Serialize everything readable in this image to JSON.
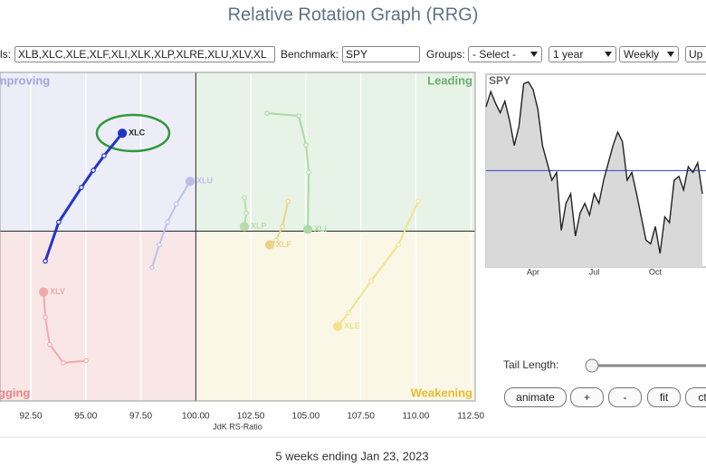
{
  "title": "Relative Rotation Graph (RRG)",
  "controls": {
    "symbols_label": "ls:",
    "symbols": "XLB,XLC,XLE,XLF,XLI,XLK,XLP,XLRE,XLU,XLV,XL",
    "benchmark_label": "Benchmark:",
    "benchmark": "SPY",
    "groups_label": "Groups:",
    "groups": "- Select -",
    "period": "1 year",
    "frequency": "Weekly",
    "update": "Up"
  },
  "chart_data": [
    {
      "type": "scatter",
      "x_label": "JdK RS-Ratio",
      "quadrants": {
        "improving": "mproving",
        "leading": "Leading",
        "lagging": "gging",
        "weakening": "Weakening"
      },
      "xlim": [
        91.1,
        112.7
      ],
      "ylim": [
        92.3,
        107.2
      ],
      "center": 100,
      "xticks": [
        {
          "value": 92.5,
          "label": "92.50"
        },
        {
          "value": 95,
          "label": "95.00"
        },
        {
          "value": 97.5,
          "label": "97.50"
        },
        {
          "value": 100,
          "label": "100.00"
        },
        {
          "value": 102.5,
          "label": "102.50"
        },
        {
          "value": 105,
          "label": "105.00"
        },
        {
          "value": 107.5,
          "label": "107.50"
        },
        {
          "value": 110,
          "label": "110.00"
        },
        {
          "value": 112.5,
          "label": "112.50"
        }
      ],
      "series": [
        {
          "name": "XLU",
          "color": "#b9c0ee",
          "x": [
            98.01,
            98.34,
            98.71,
            99.12,
            99.74
          ],
          "y": [
            98.35,
            99.38,
            100.41,
            101.23,
            102.26
          ]
        },
        {
          "name": "XLV",
          "color": "#f2a9a9",
          "x": [
            95.01,
            93.98,
            93.36,
            93.16,
            93.08
          ],
          "y": [
            94.12,
            94.03,
            94.86,
            96.09,
            97.24
          ]
        },
        {
          "name": "XLE",
          "color": "#f3e28c",
          "x": [
            110.11,
            109.21,
            107.97,
            106.94,
            106.45
          ],
          "y": [
            101.36,
            99.38,
            97.74,
            96.3,
            95.68
          ]
        },
        {
          "name": "XLF",
          "color": "#eed08a",
          "x": [
            104.19,
            103.94,
            103.65,
            103.36
          ],
          "y": [
            101.36,
            100.21,
            99.59,
            99.38
          ]
        },
        {
          "name": "XLI",
          "color": "#acd8a4",
          "x": [
            103.24,
            104.68,
            105.01,
            105.13,
            105.09
          ],
          "y": [
            105.35,
            105.23,
            103.91,
            102.67,
            100.08
          ]
        },
        {
          "name": "XLP",
          "color": "#b9dcab",
          "x": [
            102.21,
            102.29,
            102.21
          ],
          "y": [
            101.52,
            100.82,
            100.21
          ]
        },
        {
          "name": "XLC",
          "color": "#2233cc",
          "x": [
            93.16,
            93.77,
            94.8,
            95.34,
            95.83,
            96.66
          ],
          "y": [
            98.64,
            100.41,
            101.98,
            102.76,
            103.42,
            104.44
          ]
        }
      ]
    },
    {
      "type": "line",
      "title": "SPY",
      "color": "#222222",
      "ylim": [
        0,
        100
      ],
      "reference": 50,
      "categories": [
        null,
        null,
        null,
        null,
        null,
        null,
        null,
        null,
        null,
        null,
        "Apr",
        null,
        null,
        null,
        null,
        null,
        null,
        null,
        null,
        null,
        null,
        null,
        null,
        "Jul",
        null,
        null,
        null,
        null,
        null,
        null,
        null,
        null,
        null,
        null,
        null,
        null,
        "Oct",
        null,
        null,
        null,
        null,
        null,
        null,
        null,
        null,
        null,
        null
      ],
      "values": [
        83,
        91,
        85,
        80,
        86,
        76,
        63,
        73,
        95,
        96,
        92,
        82,
        63,
        54,
        45,
        49,
        19,
        33,
        38,
        16,
        28,
        33,
        27,
        38,
        33,
        45,
        54,
        63,
        70,
        65,
        45,
        49,
        38,
        26,
        14,
        12,
        21,
        7,
        26,
        23,
        45,
        47,
        40,
        52,
        49,
        54,
        38
      ]
    }
  ],
  "tail_length_label": "Tail Length:",
  "buttons": [
    "animate",
    "+",
    "-",
    "fit",
    "ctr"
  ],
  "footer": "5 weeks ending Jan 23, 2023"
}
